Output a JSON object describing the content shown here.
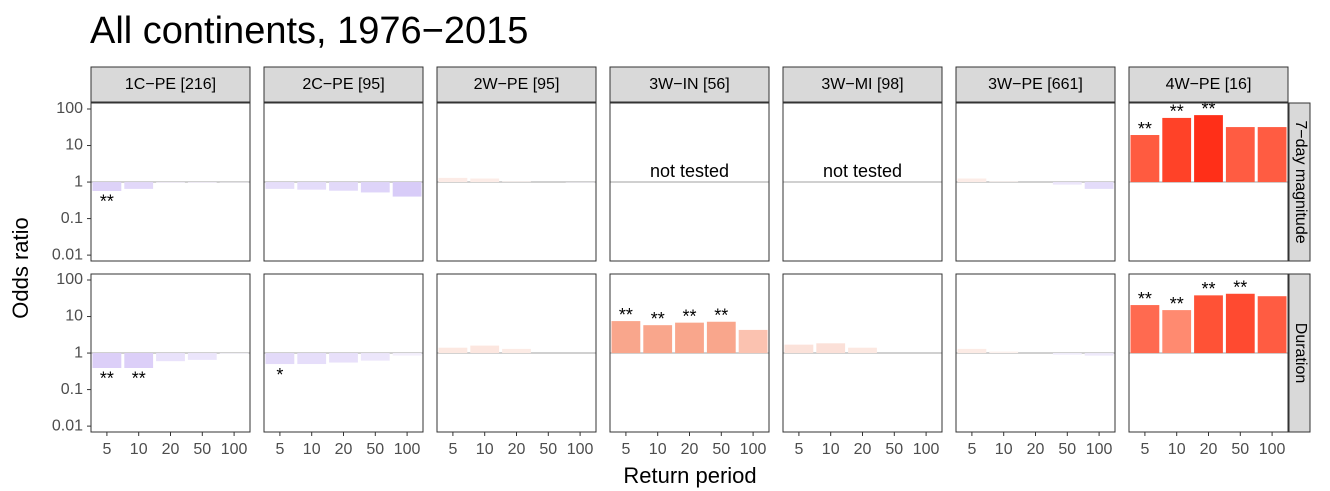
{
  "chart_data": {
    "type": "facet-bar",
    "title": "All continents, 1976−2015",
    "x_label": "Return period",
    "y_label": "Odds ratio",
    "log_scale": true,
    "categories": [
      "5",
      "10",
      "20",
      "50",
      "100"
    ],
    "ylim": [
      0.0069,
      146
    ],
    "yticks": [
      0.01,
      0.1,
      1,
      10,
      100
    ],
    "reference_line": 1,
    "reference_color": "#d0d0d0",
    "columns": [
      "1C−PE [216]",
      "2C−PE [95]",
      "2W−PE [95]",
      "3W−IN [56]",
      "3W−MI [98]",
      "3W−PE [661]",
      "4W−PE [16]"
    ],
    "rows": [
      "7−day magnitude",
      "Duration"
    ],
    "panels": [
      [
        {
          "values": [
            0.57,
            0.65,
            0.95,
            0.95,
            0.97
          ],
          "colors": [
            "#ddd2f8",
            "#e2d8f9",
            "#f4f0fc",
            "#f4f0fc",
            "#f6f4fc"
          ],
          "annotations": [
            "**",
            null,
            null,
            null,
            null
          ]
        },
        {
          "values": [
            0.65,
            0.62,
            0.58,
            0.52,
            0.4
          ],
          "colors": [
            "#e6defa",
            "#e4dcfa",
            "#e2d9f9",
            "#ded4f9",
            "#d8ccf8"
          ],
          "annotations": [
            null,
            null,
            null,
            null,
            null
          ]
        },
        {
          "values": [
            1.3,
            1.25,
            1.05,
            1.0,
            0.97
          ],
          "colors": [
            "#fcebe6",
            "#fcece7",
            "#fdf4f1",
            "#fdf6f4",
            "#f6f4fc"
          ],
          "annotations": [
            null,
            null,
            null,
            null,
            null
          ]
        },
        {
          "note": "not tested"
        },
        {
          "note": "not tested"
        },
        {
          "values": [
            1.25,
            1.05,
            1.0,
            0.85,
            0.65
          ],
          "colors": [
            "#fcece7",
            "#fdf4f1",
            "#fdf6f4",
            "#ece6fb",
            "#e4dcfa"
          ],
          "annotations": [
            null,
            null,
            null,
            null,
            null
          ]
        },
        {
          "values": [
            19.4,
            57,
            68,
            32,
            32
          ],
          "colors": [
            "#ff5b40",
            "#ff4228",
            "#ff2f18",
            "#ff5c42",
            "#ff5c42"
          ],
          "annotations": [
            "**",
            "**",
            "**",
            null,
            null
          ]
        }
      ],
      [
        {
          "values": [
            0.39,
            0.39,
            0.6,
            0.65,
            0.95
          ],
          "colors": [
            "#dccff8",
            "#dccff8",
            "#e9e2fb",
            "#ebe5fb",
            "#f6f4fc"
          ],
          "annotations": [
            "**",
            "**",
            null,
            null,
            null
          ]
        },
        {
          "values": [
            0.5,
            0.5,
            0.55,
            0.62,
            0.85
          ],
          "colors": [
            "#e3daf9",
            "#e6defa",
            "#e8e0fa",
            "#ece6fb",
            "#f3effc"
          ],
          "annotations": [
            "*",
            null,
            null,
            null,
            null
          ]
        },
        {
          "values": [
            1.4,
            1.6,
            1.3,
            1.0,
            1.0
          ],
          "colors": [
            "#fce8e1",
            "#fce6df",
            "#fcebe5",
            "#fdf6f4",
            "#fdf6f4"
          ],
          "annotations": [
            null,
            null,
            null,
            null,
            null
          ]
        },
        {
          "values": [
            7.5,
            5.8,
            6.8,
            7.2,
            4.3
          ],
          "colors": [
            "#f9a68c",
            "#f9a68c",
            "#f9a68c",
            "#f9a68c",
            "#fbc2b0"
          ],
          "annotations": [
            "**",
            "**",
            "**",
            "**",
            null
          ]
        },
        {
          "values": [
            1.7,
            1.85,
            1.4,
            1.0,
            1.0
          ],
          "colors": [
            "#fbe2da",
            "#fbe0d8",
            "#fce8e1",
            "#fdf6f4",
            "#fdf6f4"
          ],
          "annotations": [
            null,
            null,
            null,
            null,
            null
          ]
        },
        {
          "values": [
            1.3,
            1.1,
            1.0,
            0.9,
            0.85
          ],
          "colors": [
            "#fcebe5",
            "#fdf2ee",
            "#fdf6f4",
            "#f1edfc",
            "#eee9fb"
          ],
          "annotations": [
            null,
            null,
            null,
            null,
            null
          ]
        },
        {
          "values": [
            20.6,
            15,
            38,
            42,
            36
          ],
          "colors": [
            "#ff6a50",
            "#ff8a70",
            "#ff5236",
            "#ff4a30",
            "#ff5c42"
          ],
          "annotations": [
            "**",
            "**",
            "**",
            "**",
            null
          ]
        }
      ]
    ]
  }
}
